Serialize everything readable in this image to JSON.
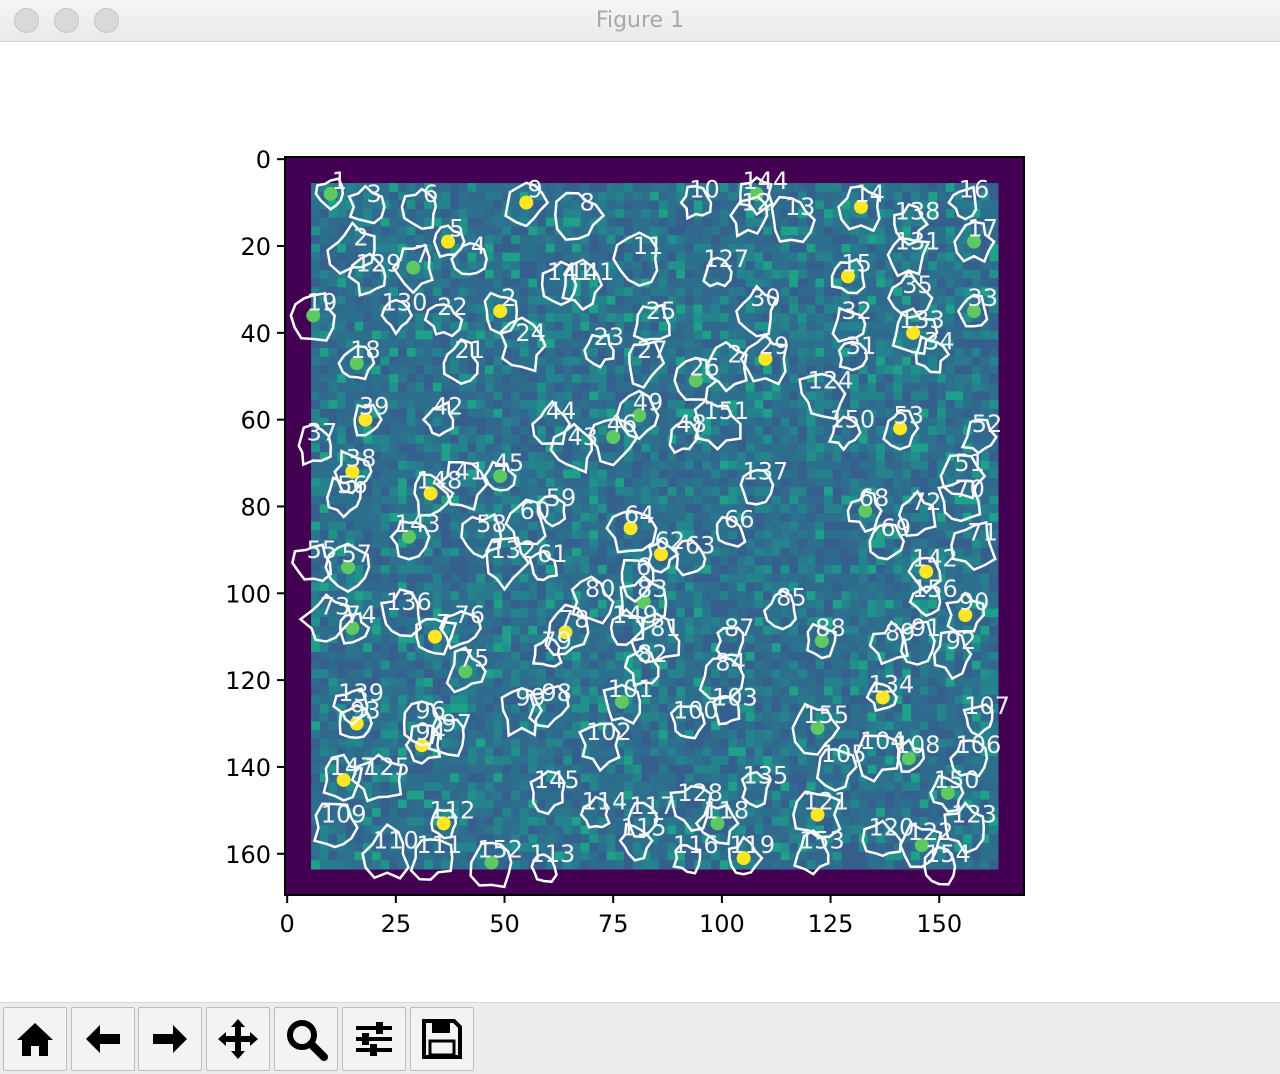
{
  "window": {
    "title": "Figure 1"
  },
  "toolbar": {
    "buttons": [
      {
        "name": "home-icon"
      },
      {
        "name": "back-arrow-icon"
      },
      {
        "name": "forward-arrow-icon"
      },
      {
        "name": "pan-move-icon"
      },
      {
        "name": "zoom-magnifier-icon"
      },
      {
        "name": "configure-subplots-icon"
      },
      {
        "name": "save-floppy-icon"
      }
    ]
  },
  "chart_data": {
    "type": "heatmap",
    "title": "",
    "xlabel": "",
    "ylabel": "",
    "xlim": [
      -0.5,
      169.5
    ],
    "ylim": [
      169.5,
      -0.5
    ],
    "xticks": [
      0,
      25,
      50,
      75,
      100,
      125,
      150
    ],
    "yticks": [
      0,
      20,
      40,
      60,
      80,
      100,
      120,
      140,
      160
    ],
    "colormap": "viridis",
    "border_color": "#440154",
    "inner_extent": [
      5.5,
      163.5,
      5.5,
      163.5
    ],
    "contour_color": "#ffffff",
    "labels": [
      {
        "t": "1",
        "x": 12,
        "y": 5
      },
      {
        "t": "3",
        "x": 20,
        "y": 8
      },
      {
        "t": "6",
        "x": 33,
        "y": 8
      },
      {
        "t": "9",
        "x": 57,
        "y": 7
      },
      {
        "t": "8",
        "x": 69,
        "y": 10
      },
      {
        "t": "10",
        "x": 96,
        "y": 7
      },
      {
        "t": "144",
        "x": 110,
        "y": 5
      },
      {
        "t": "12",
        "x": 108,
        "y": 10
      },
      {
        "t": "13",
        "x": 118,
        "y": 11
      },
      {
        "t": "14",
        "x": 134,
        "y": 8
      },
      {
        "t": "16",
        "x": 158,
        "y": 7
      },
      {
        "t": "138",
        "x": 145,
        "y": 12
      },
      {
        "t": "17",
        "x": 160,
        "y": 16
      },
      {
        "t": "131",
        "x": 145,
        "y": 19
      },
      {
        "t": "2",
        "x": 17,
        "y": 18
      },
      {
        "t": "5",
        "x": 39,
        "y": 16
      },
      {
        "t": "4",
        "x": 44,
        "y": 20
      },
      {
        "t": "129",
        "x": 21,
        "y": 24
      },
      {
        "t": "7",
        "x": 31,
        "y": 22
      },
      {
        "t": "11",
        "x": 83,
        "y": 20
      },
      {
        "t": "127",
        "x": 101,
        "y": 23
      },
      {
        "t": "15",
        "x": 131,
        "y": 24
      },
      {
        "t": "141",
        "x": 65,
        "y": 26
      },
      {
        "t": "141",
        "x": 70,
        "y": 26
      },
      {
        "t": "19",
        "x": 8,
        "y": 33
      },
      {
        "t": "130",
        "x": 27,
        "y": 33
      },
      {
        "t": "22",
        "x": 38,
        "y": 34
      },
      {
        "t": "2",
        "x": 51,
        "y": 32
      },
      {
        "t": "30",
        "x": 110,
        "y": 32
      },
      {
        "t": "35",
        "x": 145,
        "y": 29
      },
      {
        "t": "33",
        "x": 160,
        "y": 32
      },
      {
        "t": "32",
        "x": 131,
        "y": 35
      },
      {
        "t": "25",
        "x": 86,
        "y": 35
      },
      {
        "t": "133",
        "x": 146,
        "y": 37
      },
      {
        "t": "24",
        "x": 56,
        "y": 40
      },
      {
        "t": "23",
        "x": 74,
        "y": 41
      },
      {
        "t": "18",
        "x": 18,
        "y": 44
      },
      {
        "t": "21",
        "x": 42,
        "y": 44
      },
      {
        "t": "27",
        "x": 84,
        "y": 44
      },
      {
        "t": "29",
        "x": 112,
        "y": 43
      },
      {
        "t": "31",
        "x": 132,
        "y": 43
      },
      {
        "t": "34",
        "x": 150,
        "y": 42
      },
      {
        "t": "26",
        "x": 96,
        "y": 48
      },
      {
        "t": "2",
        "x": 103,
        "y": 45
      },
      {
        "t": "124",
        "x": 125,
        "y": 51
      },
      {
        "t": "39",
        "x": 20,
        "y": 57
      },
      {
        "t": "42",
        "x": 37,
        "y": 57
      },
      {
        "t": "44",
        "x": 63,
        "y": 58
      },
      {
        "t": "49",
        "x": 83,
        "y": 56
      },
      {
        "t": "151",
        "x": 101,
        "y": 58
      },
      {
        "t": "150",
        "x": 130,
        "y": 60
      },
      {
        "t": "53",
        "x": 143,
        "y": 59
      },
      {
        "t": "37",
        "x": 8,
        "y": 63
      },
      {
        "t": "43",
        "x": 68,
        "y": 64
      },
      {
        "t": "46",
        "x": 77,
        "y": 61
      },
      {
        "t": "48",
        "x": 93,
        "y": 61
      },
      {
        "t": "52",
        "x": 161,
        "y": 61
      },
      {
        "t": "38",
        "x": 17,
        "y": 69
      },
      {
        "t": "51",
        "x": 157,
        "y": 70
      },
      {
        "t": "41",
        "x": 42,
        "y": 72
      },
      {
        "t": "45",
        "x": 51,
        "y": 70
      },
      {
        "t": "137",
        "x": 110,
        "y": 72
      },
      {
        "t": "56",
        "x": 15,
        "y": 75
      },
      {
        "t": "148",
        "x": 35,
        "y": 74
      },
      {
        "t": "70",
        "x": 157,
        "y": 76
      },
      {
        "t": "59",
        "x": 63,
        "y": 78
      },
      {
        "t": "68",
        "x": 135,
        "y": 78
      },
      {
        "t": "72",
        "x": 147,
        "y": 79
      },
      {
        "t": "60",
        "x": 57,
        "y": 81
      },
      {
        "t": "64",
        "x": 81,
        "y": 82
      },
      {
        "t": "66",
        "x": 104,
        "y": 83
      },
      {
        "t": "69",
        "x": 140,
        "y": 85
      },
      {
        "t": "143",
        "x": 30,
        "y": 84
      },
      {
        "t": "58",
        "x": 47,
        "y": 84
      },
      {
        "t": "71",
        "x": 160,
        "y": 86
      },
      {
        "t": "62",
        "x": 88,
        "y": 88
      },
      {
        "t": "63",
        "x": 95,
        "y": 89
      },
      {
        "t": "55",
        "x": 8,
        "y": 90
      },
      {
        "t": "57",
        "x": 16,
        "y": 91
      },
      {
        "t": "132",
        "x": 52,
        "y": 90
      },
      {
        "t": "61",
        "x": 61,
        "y": 91
      },
      {
        "t": "142",
        "x": 149,
        "y": 92
      },
      {
        "t": "6",
        "x": 82,
        "y": 94
      },
      {
        "t": "80",
        "x": 72,
        "y": 99
      },
      {
        "t": "83",
        "x": 84,
        "y": 99
      },
      {
        "t": "156",
        "x": 149,
        "y": 99
      },
      {
        "t": "85",
        "x": 116,
        "y": 101
      },
      {
        "t": "90",
        "x": 158,
        "y": 102
      },
      {
        "t": "136",
        "x": 28,
        "y": 102
      },
      {
        "t": "73",
        "x": 11,
        "y": 103
      },
      {
        "t": "74",
        "x": 17,
        "y": 105
      },
      {
        "t": "149",
        "x": 80,
        "y": 105
      },
      {
        "t": "76",
        "x": 42,
        "y": 105
      },
      {
        "t": "7",
        "x": 36,
        "y": 107
      },
      {
        "t": "81",
        "x": 87,
        "y": 108
      },
      {
        "t": "87",
        "x": 104,
        "y": 108
      },
      {
        "t": "88",
        "x": 125,
        "y": 108
      },
      {
        "t": "89",
        "x": 141,
        "y": 109
      },
      {
        "t": "91",
        "x": 147,
        "y": 108
      },
      {
        "t": "78",
        "x": 66,
        "y": 106
      },
      {
        "t": "79",
        "x": 62,
        "y": 111
      },
      {
        "t": "82",
        "x": 84,
        "y": 114
      },
      {
        "t": "75",
        "x": 43,
        "y": 115
      },
      {
        "t": "92",
        "x": 155,
        "y": 111
      },
      {
        "t": "84",
        "x": 102,
        "y": 116
      },
      {
        "t": "134",
        "x": 139,
        "y": 121
      },
      {
        "t": "139",
        "x": 17,
        "y": 123
      },
      {
        "t": "98",
        "x": 62,
        "y": 123
      },
      {
        "t": "101",
        "x": 79,
        "y": 122
      },
      {
        "t": "99",
        "x": 56,
        "y": 124
      },
      {
        "t": "103",
        "x": 103,
        "y": 124
      },
      {
        "t": "93",
        "x": 18,
        "y": 127
      },
      {
        "t": "96",
        "x": 33,
        "y": 127
      },
      {
        "t": "97",
        "x": 39,
        "y": 130
      },
      {
        "t": "155",
        "x": 124,
        "y": 128
      },
      {
        "t": "107",
        "x": 161,
        "y": 126
      },
      {
        "t": "100",
        "x": 94,
        "y": 127
      },
      {
        "t": "94",
        "x": 33,
        "y": 132
      },
      {
        "t": "102",
        "x": 74,
        "y": 132
      },
      {
        "t": "104",
        "x": 137,
        "y": 134
      },
      {
        "t": "108",
        "x": 145,
        "y": 135
      },
      {
        "t": "106",
        "x": 159,
        "y": 135
      },
      {
        "t": "105",
        "x": 128,
        "y": 137
      },
      {
        "t": "147",
        "x": 15,
        "y": 140
      },
      {
        "t": "125",
        "x": 23,
        "y": 140
      },
      {
        "t": "135",
        "x": 110,
        "y": 142
      },
      {
        "t": "150",
        "x": 154,
        "y": 143
      },
      {
        "t": "145",
        "x": 62,
        "y": 143
      },
      {
        "t": "128",
        "x": 95,
        "y": 146
      },
      {
        "t": "121",
        "x": 124,
        "y": 148
      },
      {
        "t": "114",
        "x": 73,
        "y": 148
      },
      {
        "t": "117",
        "x": 84,
        "y": 149
      },
      {
        "t": "118",
        "x": 101,
        "y": 150
      },
      {
        "t": "123",
        "x": 158,
        "y": 151
      },
      {
        "t": "109",
        "x": 13,
        "y": 151
      },
      {
        "t": "112",
        "x": 38,
        "y": 150
      },
      {
        "t": "115",
        "x": 82,
        "y": 154
      },
      {
        "t": "120",
        "x": 139,
        "y": 154
      },
      {
        "t": "122",
        "x": 148,
        "y": 155
      },
      {
        "t": "110",
        "x": 25,
        "y": 157
      },
      {
        "t": "116",
        "x": 94,
        "y": 158
      },
      {
        "t": "119",
        "x": 107,
        "y": 158
      },
      {
        "t": "153",
        "x": 123,
        "y": 157
      },
      {
        "t": "111",
        "x": 35,
        "y": 158
      },
      {
        "t": "152",
        "x": 49,
        "y": 159
      },
      {
        "t": "113",
        "x": 61,
        "y": 160
      },
      {
        "t": "154",
        "x": 152,
        "y": 160
      }
    ]
  }
}
